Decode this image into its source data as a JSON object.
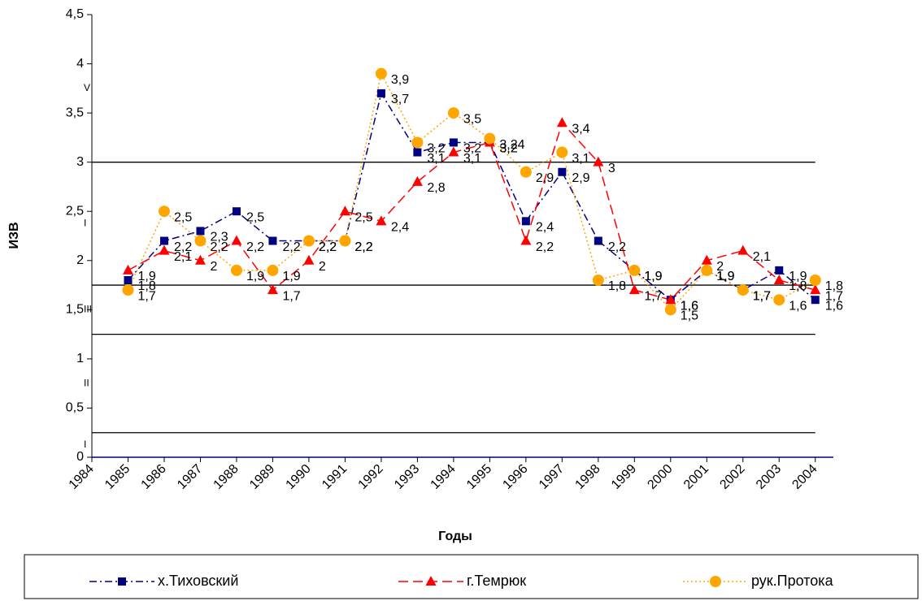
{
  "chart_data": {
    "type": "line",
    "ylabel": "ИЗВ",
    "xlabel": "Годы",
    "x": [
      1985,
      1986,
      1987,
      1988,
      1989,
      1990,
      1991,
      1992,
      1993,
      1994,
      1995,
      1996,
      1997,
      1998,
      1999,
      2000,
      2001,
      2002,
      2003,
      2004
    ],
    "xlim": [
      1984,
      2004.5
    ],
    "xticks": [
      1984,
      1985,
      1986,
      1987,
      1988,
      1989,
      1990,
      1991,
      1992,
      1993,
      1994,
      1995,
      1996,
      1997,
      1998,
      1999,
      2000,
      2001,
      2002,
      2003,
      2004
    ],
    "ylim": [
      0,
      4.5
    ],
    "yticks": [
      0,
      {
        "value": 0.5,
        "label": "0,5"
      },
      1,
      {
        "value": 1.5,
        "label": "1,5"
      },
      2,
      {
        "value": 2.5,
        "label": "2,5"
      },
      3,
      {
        "value": 3.5,
        "label": "3,5"
      },
      4,
      {
        "value": 4.5,
        "label": "4,5"
      }
    ],
    "reference_lines": [
      3,
      1.75,
      1.25,
      0.25
    ],
    "zone_labels": [
      "V",
      "I",
      "III",
      "II",
      "I"
    ],
    "legend": "bottom",
    "series": [
      {
        "name": "х.Тиховский",
        "color": "#000080",
        "marker": "square",
        "dash": "dashdot",
        "values": [
          1.8,
          2.2,
          2.3,
          2.5,
          2.2,
          2.2,
          2.2,
          3.7,
          3.1,
          3.2,
          3.2,
          2.4,
          2.9,
          2.2,
          1.9,
          1.6,
          1.9,
          1.7,
          1.9,
          1.6
        ],
        "value_labels": [
          "1,8",
          "2,2",
          "2,3",
          "2,5",
          "2,2",
          "2,2",
          "2,2",
          "3,7",
          "3,1",
          "3,2",
          "3,2",
          "2,4",
          "2,9",
          "2,2",
          "1,9",
          "1,6",
          "1,9",
          "1,7",
          "1,9",
          "1,6"
        ]
      },
      {
        "name": "г.Темрюк",
        "color": "#ff0000",
        "marker": "triangle",
        "dash": "dashed",
        "values": [
          1.9,
          2.1,
          2.0,
          2.2,
          1.7,
          2.0,
          2.5,
          2.4,
          2.8,
          3.1,
          3.2,
          2.2,
          3.4,
          3.0,
          1.7,
          1.6,
          2.0,
          2.1,
          1.8,
          1.7
        ],
        "value_labels": [
          "1,9",
          "2,1",
          "2",
          "2,2",
          "1,7",
          "2",
          "2,5",
          "2,4",
          "2,8",
          "3,1",
          "3,2",
          "2,2",
          "3,4",
          "3",
          "1,7",
          "1,6",
          "2",
          "2,1",
          "1,8",
          "1,7"
        ]
      },
      {
        "name": "рук.Протока",
        "color": "#ffa500",
        "marker": "circle",
        "dash": "dotted",
        "values": [
          1.7,
          2.5,
          2.2,
          1.9,
          1.9,
          2.2,
          2.2,
          3.9,
          3.2,
          3.5,
          3.24,
          2.9,
          3.1,
          1.8,
          1.9,
          1.5,
          1.9,
          1.7,
          1.6,
          1.8
        ],
        "value_labels": [
          "1,7",
          "2,5",
          "2,2",
          "1,9",
          "1,9",
          "2,2",
          "2,2",
          "3,9",
          "3,2",
          "3,5",
          "3,24",
          "2,9",
          "3,1",
          "1,8",
          "1,9",
          "1,5",
          "1,9",
          "1,7",
          "1,6",
          "1,8"
        ]
      }
    ]
  }
}
